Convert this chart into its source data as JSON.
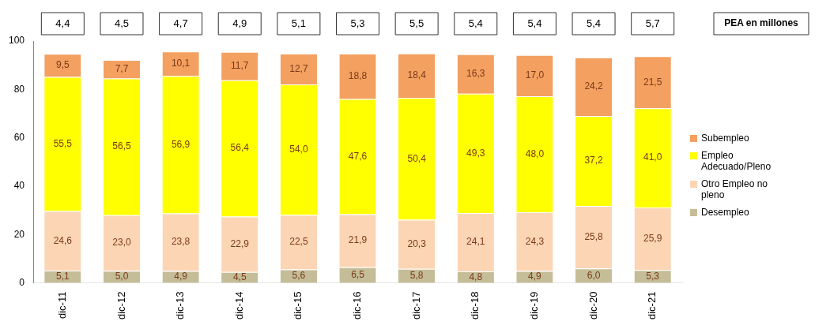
{
  "chart_data": {
    "type": "bar",
    "stacked": true,
    "categories": [
      "dic-11",
      "dic-12",
      "dic-13",
      "dic-14",
      "dic-15",
      "dic-16",
      "dic-17",
      "dic-18",
      "dic-19",
      "dic-20",
      "dic-21"
    ],
    "series": [
      {
        "name": "Desempleo",
        "color": "#c4bd97",
        "values": [
          5.1,
          5.0,
          4.9,
          4.5,
          5.6,
          6.5,
          5.8,
          4.8,
          4.9,
          6.0,
          5.3
        ],
        "value_labels": [
          "5,1",
          "5,0",
          "4,9",
          "4,5",
          "5,6",
          "6,5",
          "5,8",
          "4,8",
          "4,9",
          "6,0",
          "5,3"
        ]
      },
      {
        "name": "Otro Empleo no pleno",
        "color": "#fcd5b5",
        "values": [
          24.6,
          23.0,
          23.8,
          22.9,
          22.5,
          21.9,
          20.3,
          24.1,
          24.3,
          25.8,
          25.9
        ],
        "value_labels": [
          "24,6",
          "23,0",
          "23,8",
          "22,9",
          "22,5",
          "21,9",
          "20,3",
          "24,1",
          "24,3",
          "25,8",
          "25,9"
        ]
      },
      {
        "name": "Empleo Adecuado/Pleno",
        "color": "#ffff00",
        "values": [
          55.5,
          56.5,
          56.9,
          56.4,
          54.0,
          47.6,
          50.4,
          49.3,
          48.0,
          37.2,
          41.0
        ],
        "value_labels": [
          "55,5",
          "56,5",
          "56,9",
          "56,4",
          "54,0",
          "47,6",
          "50,4",
          "49,3",
          "48,0",
          "37,2",
          "41,0"
        ]
      },
      {
        "name": "Subempleo",
        "color": "#f4a060",
        "values": [
          9.5,
          7.7,
          10.1,
          11.7,
          12.7,
          18.8,
          18.4,
          16.3,
          17.0,
          24.2,
          21.5
        ],
        "value_labels": [
          "9,5",
          "7,7",
          "10,1",
          "11,7",
          "12,7",
          "18,8",
          "18,4",
          "16,3",
          "17,0",
          "24,2",
          "21,5"
        ]
      }
    ],
    "ylim": [
      0,
      100
    ],
    "yticks": [
      0,
      20,
      40,
      60,
      80,
      100
    ],
    "grid": false,
    "legend": "right",
    "annotations": [
      "4,4",
      "4,5",
      "4,7",
      "4,9",
      "5,1",
      "5,3",
      "5,5",
      "5,4",
      "5,4",
      "5,4",
      "5,7",
      "PEA en millones"
    ]
  }
}
